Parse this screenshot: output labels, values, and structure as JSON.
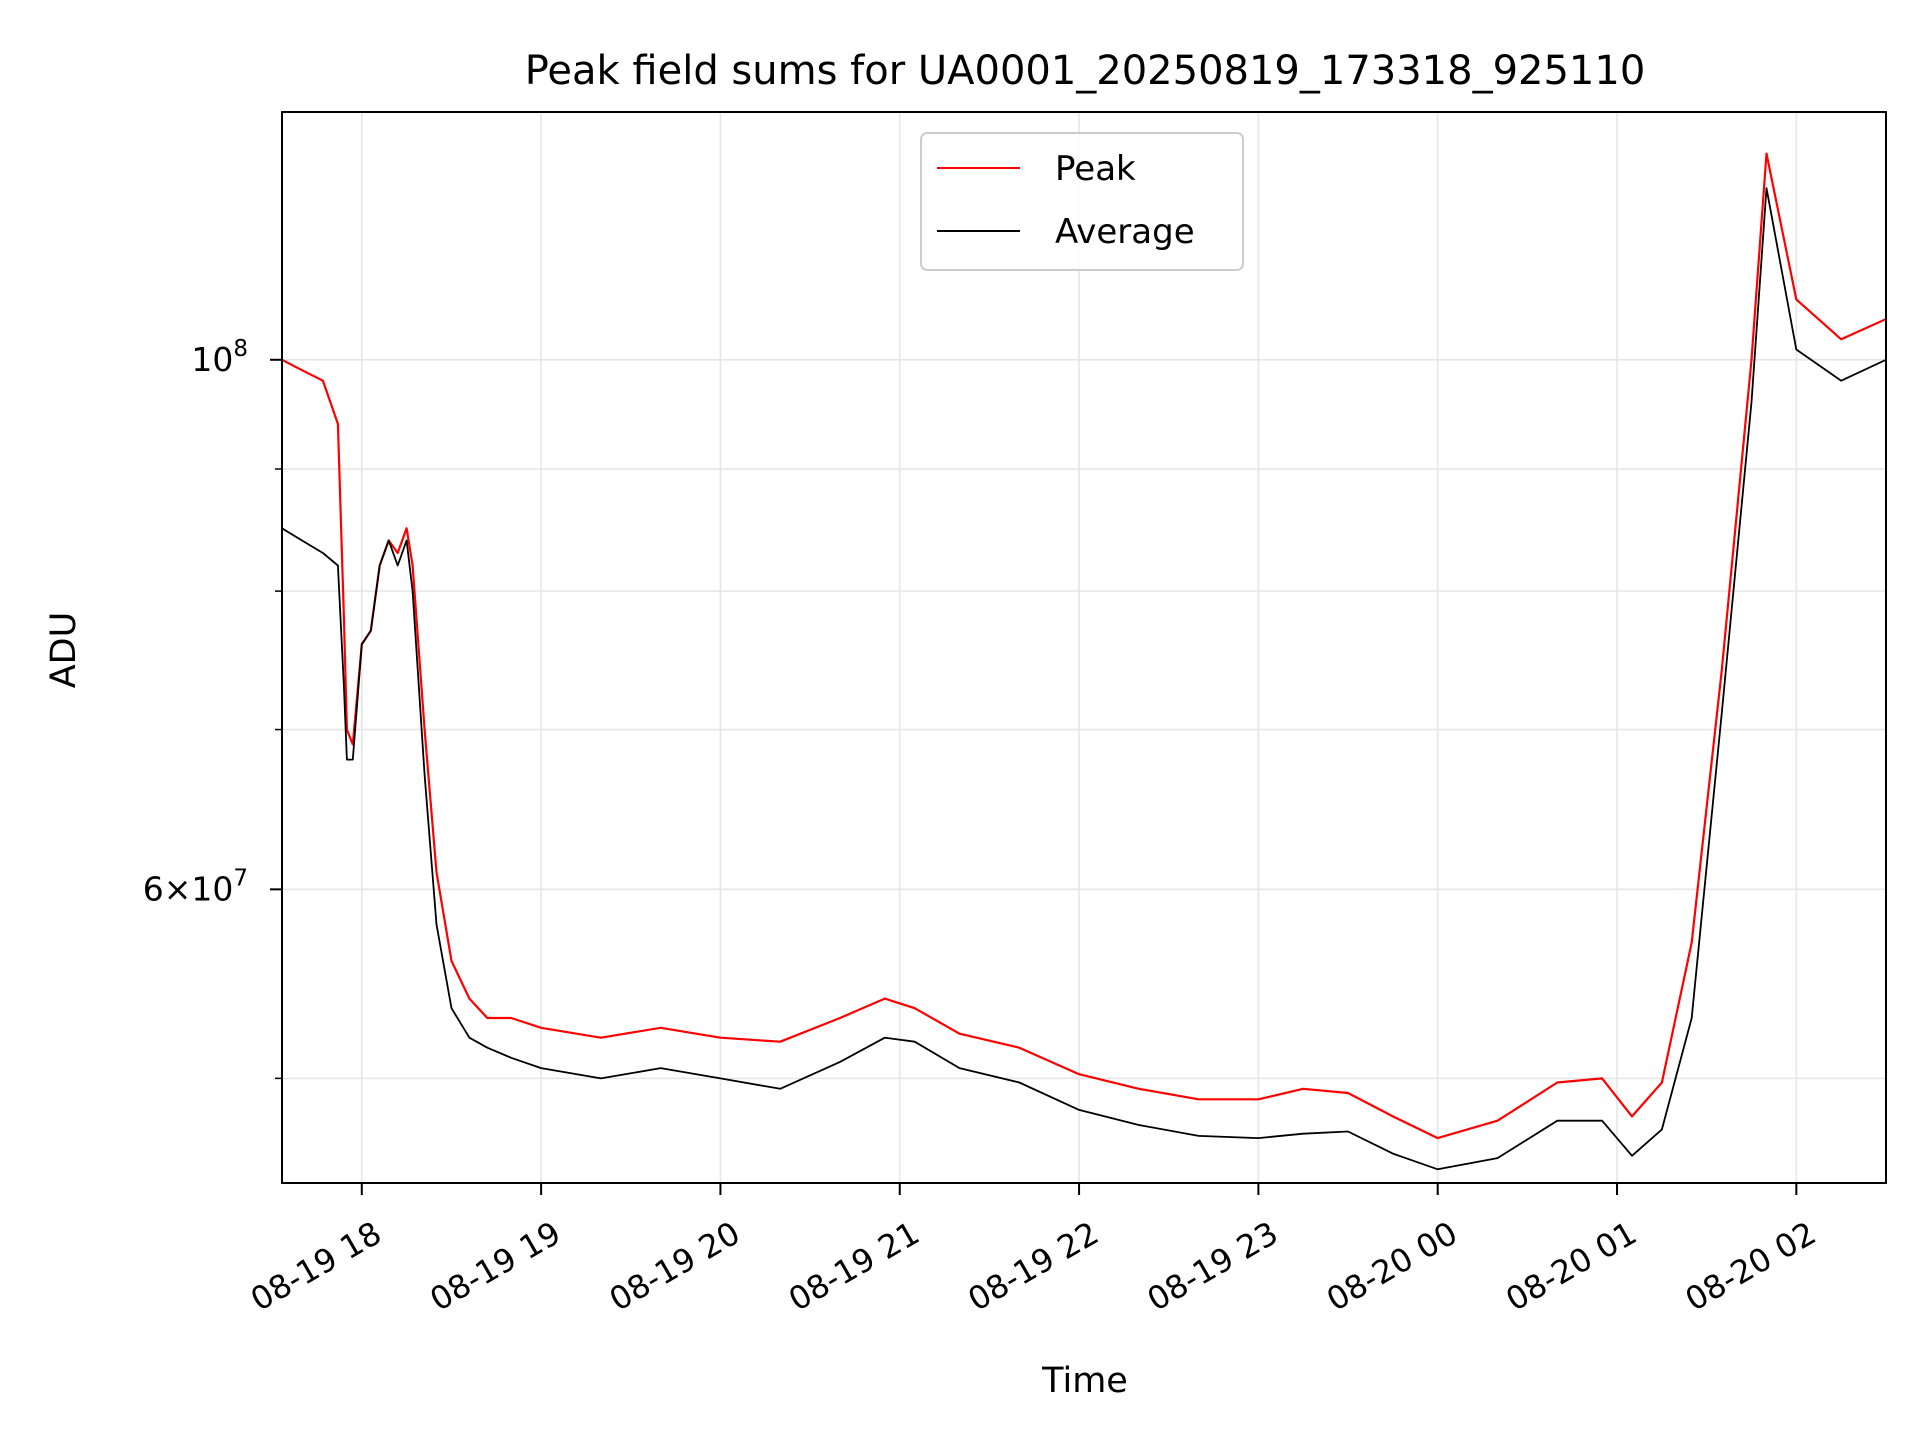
{
  "chart_data": {
    "type": "line",
    "title": "Peak field sums for UA0001_20250819_173318_925110",
    "xlabel": "Time",
    "ylabel": "ADU",
    "yscale": "log",
    "ylim": [
      45200000,
      127000000
    ],
    "xlim": [
      "2025-08-19T17:33:18",
      "2025-08-20T02:30:00"
    ],
    "grid": true,
    "legend": "upper center",
    "x_ticks": [
      {
        "t": "2025-08-19T18:00:00",
        "label": "08-19 18"
      },
      {
        "t": "2025-08-19T19:00:00",
        "label": "08-19 19"
      },
      {
        "t": "2025-08-19T20:00:00",
        "label": "08-19 20"
      },
      {
        "t": "2025-08-19T21:00:00",
        "label": "08-19 21"
      },
      {
        "t": "2025-08-19T22:00:00",
        "label": "08-19 22"
      },
      {
        "t": "2025-08-19T23:00:00",
        "label": "08-19 23"
      },
      {
        "t": "2025-08-20T00:00:00",
        "label": "08-20 00"
      },
      {
        "t": "2025-08-20T01:00:00",
        "label": "08-20 01"
      },
      {
        "t": "2025-08-20T02:00:00",
        "label": "08-20 02"
      }
    ],
    "y_major_ticks": [
      {
        "value": 60000000,
        "base": "6×10",
        "exp": "7"
      },
      {
        "value": 100000000,
        "base": "10",
        "exp": "8"
      }
    ],
    "y_minor_ticks": [
      50000000,
      70000000,
      80000000,
      90000000
    ],
    "series": [
      {
        "name": "Peak",
        "color": "#ff0000",
        "x": [
          "2025-08-19T17:33:18",
          "2025-08-19T17:40:00",
          "2025-08-19T17:47:00",
          "2025-08-19T17:52:00",
          "2025-08-19T17:54:00",
          "2025-08-19T17:55:00",
          "2025-08-19T17:57:00",
          "2025-08-19T18:00:00",
          "2025-08-19T18:03:00",
          "2025-08-19T18:06:00",
          "2025-08-19T18:09:00",
          "2025-08-19T18:12:00",
          "2025-08-19T18:15:00",
          "2025-08-19T18:17:00",
          "2025-08-19T18:21:00",
          "2025-08-19T18:25:00",
          "2025-08-19T18:30:00",
          "2025-08-19T18:36:00",
          "2025-08-19T18:42:00",
          "2025-08-19T18:50:00",
          "2025-08-19T19:00:00",
          "2025-08-19T19:20:00",
          "2025-08-19T19:40:00",
          "2025-08-19T20:00:00",
          "2025-08-19T20:20:00",
          "2025-08-19T20:40:00",
          "2025-08-19T20:55:00",
          "2025-08-19T21:05:00",
          "2025-08-19T21:20:00",
          "2025-08-19T21:40:00",
          "2025-08-19T22:00:00",
          "2025-08-19T22:20:00",
          "2025-08-19T22:40:00",
          "2025-08-19T23:00:00",
          "2025-08-19T23:15:00",
          "2025-08-19T23:30:00",
          "2025-08-19T23:45:00",
          "2025-08-20T00:00:00",
          "2025-08-20T00:20:00",
          "2025-08-20T00:40:00",
          "2025-08-20T00:55:00",
          "2025-08-20T01:05:00",
          "2025-08-20T01:15:00",
          "2025-08-20T01:25:00",
          "2025-08-20T01:35:00",
          "2025-08-20T01:45:00",
          "2025-08-20T01:50:00",
          "2025-08-20T02:00:00",
          "2025-08-20T02:15:00",
          "2025-08-20T02:30:00"
        ],
        "values": [
          100000000,
          99000000,
          98000000,
          94000000,
          78000000,
          70000000,
          69000000,
          76000000,
          77000000,
          82000000,
          84000000,
          83000000,
          85000000,
          82000000,
          70000000,
          61000000,
          56000000,
          54000000,
          53000000,
          53000000,
          52500000,
          52000000,
          52500000,
          52000000,
          51800000,
          53000000,
          54000000,
          53500000,
          52200000,
          51500000,
          50200000,
          49500000,
          49000000,
          49000000,
          49500000,
          49300000,
          48200000,
          47200000,
          48000000,
          49800000,
          50000000,
          48200000,
          49800000,
          57000000,
          74000000,
          100000000,
          122000000,
          106000000,
          102000000,
          104000000
        ]
      },
      {
        "name": "Average",
        "color": "#000000",
        "x": [
          "2025-08-19T17:33:18",
          "2025-08-19T17:40:00",
          "2025-08-19T17:47:00",
          "2025-08-19T17:52:00",
          "2025-08-19T17:54:00",
          "2025-08-19T17:55:00",
          "2025-08-19T17:57:00",
          "2025-08-19T18:00:00",
          "2025-08-19T18:03:00",
          "2025-08-19T18:06:00",
          "2025-08-19T18:09:00",
          "2025-08-19T18:12:00",
          "2025-08-19T18:15:00",
          "2025-08-19T18:17:00",
          "2025-08-19T18:21:00",
          "2025-08-19T18:25:00",
          "2025-08-19T18:30:00",
          "2025-08-19T18:36:00",
          "2025-08-19T18:42:00",
          "2025-08-19T18:50:00",
          "2025-08-19T19:00:00",
          "2025-08-19T19:20:00",
          "2025-08-19T19:40:00",
          "2025-08-19T20:00:00",
          "2025-08-19T20:20:00",
          "2025-08-19T20:40:00",
          "2025-08-19T20:55:00",
          "2025-08-19T21:05:00",
          "2025-08-19T21:20:00",
          "2025-08-19T21:40:00",
          "2025-08-19T22:00:00",
          "2025-08-19T22:20:00",
          "2025-08-19T22:40:00",
          "2025-08-19T23:00:00",
          "2025-08-19T23:15:00",
          "2025-08-19T23:30:00",
          "2025-08-19T23:45:00",
          "2025-08-20T00:00:00",
          "2025-08-20T00:20:00",
          "2025-08-20T00:40:00",
          "2025-08-20T00:55:00",
          "2025-08-20T01:05:00",
          "2025-08-20T01:15:00",
          "2025-08-20T01:25:00",
          "2025-08-20T01:35:00",
          "2025-08-20T01:45:00",
          "2025-08-20T01:50:00",
          "2025-08-20T02:00:00",
          "2025-08-20T02:15:00",
          "2025-08-20T02:30:00"
        ],
        "values": [
          85000000,
          84000000,
          83000000,
          82000000,
          73000000,
          68000000,
          68000000,
          76000000,
          77000000,
          82000000,
          84000000,
          82000000,
          84000000,
          80000000,
          67000000,
          58000000,
          53500000,
          52000000,
          51500000,
          51000000,
          50500000,
          50000000,
          50500000,
          50000000,
          49500000,
          50800000,
          52000000,
          51800000,
          50500000,
          49800000,
          48500000,
          47800000,
          47300000,
          47200000,
          47400000,
          47500000,
          46500000,
          45800000,
          46300000,
          48000000,
          48000000,
          46400000,
          47600000,
          53000000,
          71000000,
          96000000,
          118000000,
          101000000,
          98000000,
          100000000
        ]
      }
    ]
  }
}
